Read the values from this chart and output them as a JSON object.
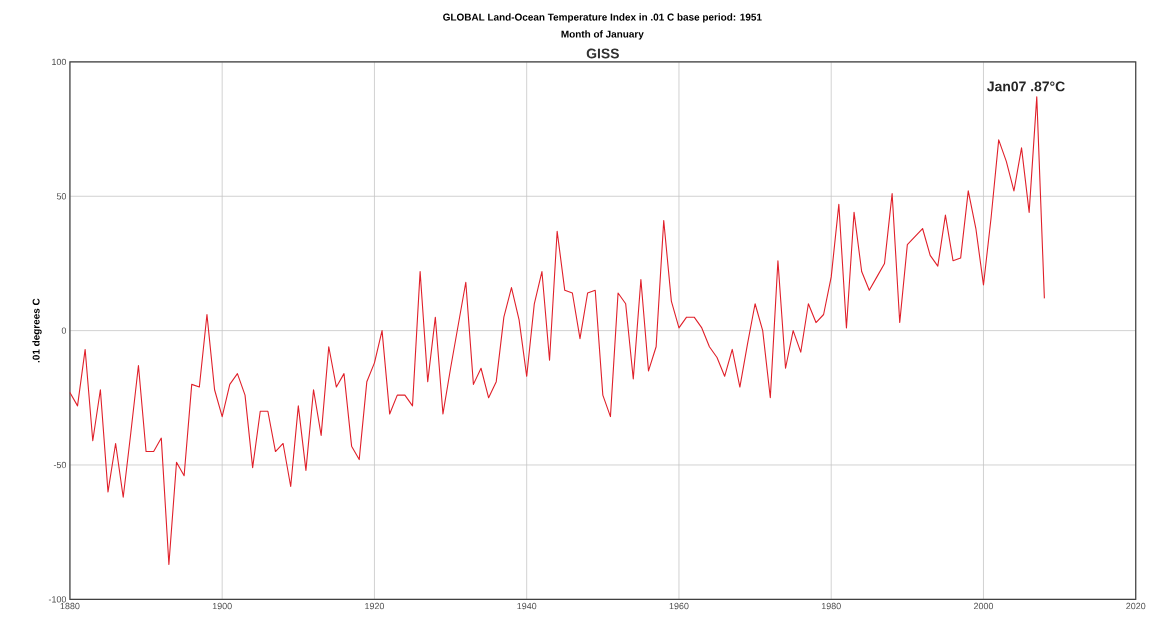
{
  "chart_data": {
    "type": "line",
    "title": "GLOBAL Land-Ocean Temperature Index in .01 C      base period: 1951",
    "subtitle": "Month of January",
    "ylabel": ".01 degrees C",
    "annotations": [
      "GISS",
      {
        "text": "Jan07 .87°C",
        "x": 2007,
        "y": 87
      }
    ],
    "x": [
      1880,
      1881,
      1882,
      1883,
      1884,
      1885,
      1886,
      1887,
      1888,
      1889,
      1890,
      1891,
      1892,
      1893,
      1894,
      1895,
      1896,
      1897,
      1898,
      1899,
      1900,
      1901,
      1902,
      1903,
      1904,
      1905,
      1906,
      1907,
      1908,
      1909,
      1910,
      1911,
      1912,
      1913,
      1914,
      1915,
      1916,
      1917,
      1918,
      1919,
      1920,
      1921,
      1922,
      1923,
      1924,
      1925,
      1926,
      1927,
      1928,
      1929,
      1930,
      1931,
      1932,
      1933,
      1934,
      1935,
      1936,
      1937,
      1938,
      1939,
      1940,
      1941,
      1942,
      1943,
      1944,
      1945,
      1946,
      1947,
      1948,
      1949,
      1950,
      1951,
      1952,
      1953,
      1954,
      1955,
      1956,
      1957,
      1958,
      1959,
      1960,
      1961,
      1962,
      1963,
      1964,
      1965,
      1966,
      1967,
      1968,
      1969,
      1970,
      1971,
      1972,
      1973,
      1974,
      1975,
      1976,
      1977,
      1978,
      1979,
      1980,
      1981,
      1982,
      1983,
      1984,
      1985,
      1986,
      1987,
      1988,
      1989,
      1990,
      1991,
      1992,
      1993,
      1994,
      1995,
      1996,
      1997,
      1998,
      1999,
      2000,
      2001,
      2002,
      2003,
      2004,
      2005,
      2006,
      2007,
      2008
    ],
    "series": [
      {
        "color": "#e0202a",
        "values": [
          -23,
          -28,
          -7,
          -41,
          -22,
          -60,
          -42,
          -62,
          -38,
          -13,
          -45,
          -45,
          -40,
          -87,
          -49,
          -54,
          -20,
          -21,
          6,
          -22,
          -32,
          -20,
          -16,
          -24,
          -51,
          -30,
          -30,
          -45,
          -42,
          -58,
          -28,
          -52,
          -22,
          -39,
          -6,
          -21,
          -16,
          -43,
          -48,
          -19,
          -12,
          0,
          -31,
          -24,
          -24,
          -28,
          22,
          -19,
          5,
          -31,
          -14,
          2,
          18,
          -20,
          -14,
          -25,
          -19,
          5,
          16,
          4,
          -17,
          10,
          22,
          -11,
          37,
          15,
          14,
          -3,
          14,
          15,
          -24,
          -32,
          14,
          10,
          -18,
          19,
          -15,
          -6,
          41,
          11,
          1,
          5,
          5,
          1,
          -6,
          -10,
          -17,
          -7,
          -21,
          -5,
          10,
          0,
          -25,
          26,
          -14,
          0,
          -8,
          10,
          3,
          6,
          20,
          47,
          1,
          44,
          22,
          15,
          20,
          25,
          51,
          3,
          32,
          35,
          38,
          28,
          24,
          43,
          26,
          27,
          52,
          38,
          17,
          42,
          71,
          63,
          52,
          68,
          44,
          87,
          12
        ]
      }
    ],
    "xlim": [
      1880,
      2020
    ],
    "xticks": [
      1880,
      1900,
      1920,
      1940,
      1960,
      1980,
      2000,
      2020
    ],
    "ylim": [
      -100,
      100
    ],
    "yticks": [
      -100,
      -50,
      0,
      50,
      100
    ],
    "grid": true
  }
}
